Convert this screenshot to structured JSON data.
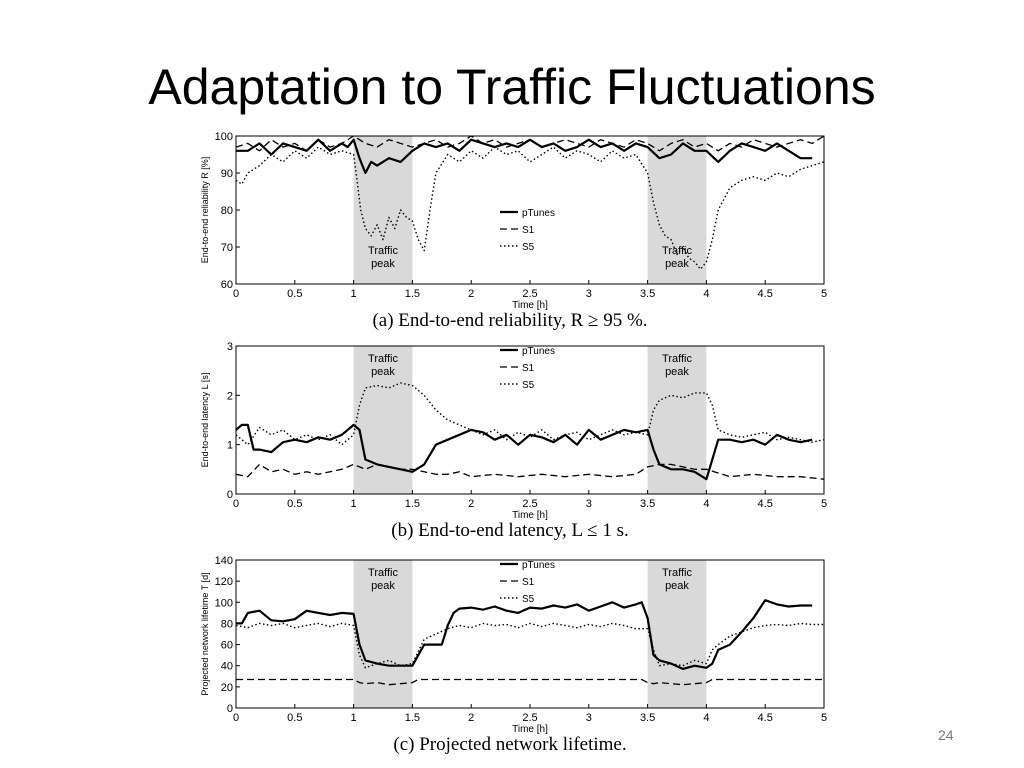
{
  "slide": {
    "title": "Adaptation to Traffic Fluctuations",
    "page_number": "24"
  },
  "chart_data": [
    {
      "type": "line",
      "caption": "(a) End-to-end reliability, R ≥ 95 %.",
      "xlabel": "Time [h]",
      "ylabel": "End-to-end reliability R [%]",
      "xlim": [
        0,
        5
      ],
      "ylim": [
        60,
        100
      ],
      "xticks": [
        "0",
        "0.5",
        "1",
        "1.5",
        "2",
        "2.5",
        "3",
        "3.5",
        "4",
        "4.5",
        "5"
      ],
      "yticks": [
        "60",
        "70",
        "80",
        "90",
        "100"
      ],
      "shaded_regions": [
        {
          "x": [
            1,
            1.5
          ],
          "label_lines": [
            "Traffic",
            "peak"
          ],
          "label_pos": "bottom"
        },
        {
          "x": [
            3.5,
            4
          ],
          "label_lines": [
            "Traffic",
            "peak"
          ],
          "label_pos": "bottom"
        }
      ],
      "legend_pos": "center",
      "series": [
        {
          "name": "pTunes",
          "style": "solid",
          "x": [
            0,
            0.1,
            0.2,
            0.3,
            0.4,
            0.5,
            0.6,
            0.7,
            0.8,
            0.9,
            0.95,
            1.0,
            1.05,
            1.1,
            1.15,
            1.2,
            1.3,
            1.4,
            1.5,
            1.6,
            1.7,
            1.8,
            1.9,
            2.0,
            2.1,
            2.2,
            2.3,
            2.4,
            2.5,
            2.6,
            2.7,
            2.8,
            2.9,
            3.0,
            3.1,
            3.2,
            3.3,
            3.4,
            3.5,
            3.6,
            3.7,
            3.8,
            3.9,
            4.0,
            4.1,
            4.2,
            4.3,
            4.4,
            4.5,
            4.6,
            4.7,
            4.8,
            4.9
          ],
          "values": [
            96,
            96,
            98,
            95,
            98,
            97,
            96,
            99,
            96,
            98,
            97,
            99,
            94,
            90,
            93,
            92,
            94,
            93,
            96,
            98,
            97,
            98,
            96,
            99,
            98,
            97,
            98,
            97,
            99,
            97,
            98,
            96,
            97,
            99,
            97,
            98,
            96,
            98,
            97,
            94,
            95,
            98,
            96,
            96,
            93,
            96,
            98,
            97,
            96,
            98,
            96,
            94,
            94
          ]
        },
        {
          "name": "S1",
          "style": "dashed",
          "x": [
            0,
            0.1,
            0.2,
            0.3,
            0.4,
            0.5,
            0.6,
            0.7,
            0.8,
            0.9,
            1.0,
            1.1,
            1.2,
            1.3,
            1.4,
            1.5,
            1.6,
            1.7,
            1.8,
            1.9,
            2.0,
            2.1,
            2.2,
            2.3,
            2.4,
            2.5,
            2.6,
            2.7,
            2.8,
            2.9,
            3.0,
            3.1,
            3.2,
            3.3,
            3.4,
            3.5,
            3.6,
            3.7,
            3.8,
            3.9,
            4.0,
            4.1,
            4.2,
            4.3,
            4.4,
            4.5,
            4.6,
            4.7,
            4.8,
            4.9,
            5.0
          ],
          "values": [
            97,
            98,
            96,
            99,
            97,
            98,
            96,
            99,
            97,
            98,
            100,
            98,
            97,
            99,
            98,
            97,
            98,
            99,
            97,
            98,
            100,
            98,
            99,
            97,
            98,
            99,
            97,
            98,
            99,
            98,
            97,
            99,
            98,
            97,
            99,
            98,
            96,
            98,
            99,
            97,
            98,
            96,
            98,
            97,
            99,
            98,
            97,
            98,
            99,
            98,
            100
          ]
        },
        {
          "name": "S5",
          "style": "dotted",
          "x": [
            0,
            0.05,
            0.1,
            0.2,
            0.3,
            0.4,
            0.5,
            0.6,
            0.7,
            0.8,
            0.9,
            1.0,
            1.03,
            1.06,
            1.1,
            1.15,
            1.2,
            1.25,
            1.3,
            1.35,
            1.4,
            1.45,
            1.5,
            1.55,
            1.6,
            1.65,
            1.7,
            1.8,
            1.9,
            2.0,
            2.1,
            2.2,
            2.3,
            2.4,
            2.5,
            2.6,
            2.7,
            2.8,
            2.9,
            3.0,
            3.1,
            3.2,
            3.3,
            3.4,
            3.5,
            3.55,
            3.6,
            3.65,
            3.7,
            3.75,
            3.8,
            3.85,
            3.9,
            3.95,
            4.0,
            4.05,
            4.1,
            4.2,
            4.3,
            4.4,
            4.5,
            4.6,
            4.7,
            4.8,
            4.9,
            5.0
          ],
          "values": [
            88,
            87,
            90,
            92,
            95,
            93,
            96,
            94,
            97,
            95,
            96,
            95,
            88,
            80,
            75,
            73,
            76,
            72,
            78,
            75,
            80,
            78,
            77,
            72,
            69,
            80,
            90,
            95,
            93,
            96,
            94,
            97,
            95,
            96,
            93,
            95,
            97,
            94,
            96,
            95,
            93,
            96,
            94,
            95,
            90,
            82,
            76,
            73,
            72,
            68,
            70,
            67,
            66,
            64,
            66,
            72,
            80,
            86,
            88,
            89,
            88,
            90,
            89,
            91,
            92,
            93
          ]
        }
      ]
    },
    {
      "type": "line",
      "caption": "(b) End-to-end latency, L ≤ 1 s.",
      "xlabel": "Time [h]",
      "ylabel": "End-to-end latency L [s]",
      "xlim": [
        0,
        5
      ],
      "ylim": [
        0,
        3
      ],
      "xticks": [
        "0",
        "0.5",
        "1",
        "1.5",
        "2",
        "2.5",
        "3",
        "3.5",
        "4",
        "4.5",
        "5"
      ],
      "yticks": [
        "0",
        "1",
        "2",
        "3"
      ],
      "shaded_regions": [
        {
          "x": [
            1,
            1.5
          ],
          "label_lines": [
            "Traffic",
            "peak"
          ],
          "label_pos": "top"
        },
        {
          "x": [
            3.5,
            4
          ],
          "label_lines": [
            "Traffic",
            "peak"
          ],
          "label_pos": "top"
        }
      ],
      "legend_pos": "top-center",
      "series": [
        {
          "name": "pTunes",
          "style": "solid",
          "x": [
            0,
            0.05,
            0.1,
            0.15,
            0.2,
            0.3,
            0.4,
            0.5,
            0.6,
            0.7,
            0.8,
            0.9,
            1.0,
            1.05,
            1.1,
            1.15,
            1.2,
            1.3,
            1.4,
            1.5,
            1.6,
            1.7,
            1.8,
            1.9,
            2.0,
            2.1,
            2.2,
            2.3,
            2.4,
            2.5,
            2.6,
            2.7,
            2.8,
            2.9,
            3.0,
            3.1,
            3.2,
            3.3,
            3.4,
            3.5,
            3.55,
            3.6,
            3.7,
            3.8,
            3.9,
            4.0,
            4.05,
            4.1,
            4.2,
            4.3,
            4.4,
            4.5,
            4.6,
            4.7,
            4.8,
            4.9
          ],
          "values": [
            1.3,
            1.4,
            1.4,
            0.9,
            0.9,
            0.85,
            1.05,
            1.1,
            1.05,
            1.15,
            1.1,
            1.2,
            1.4,
            1.3,
            0.7,
            0.65,
            0.6,
            0.55,
            0.5,
            0.45,
            0.6,
            1.0,
            1.1,
            1.2,
            1.3,
            1.25,
            1.1,
            1.2,
            1.0,
            1.2,
            1.15,
            1.05,
            1.2,
            1.0,
            1.3,
            1.1,
            1.2,
            1.3,
            1.25,
            1.3,
            0.9,
            0.6,
            0.5,
            0.5,
            0.45,
            0.3,
            0.7,
            1.1,
            1.1,
            1.05,
            1.1,
            1.0,
            1.2,
            1.1,
            1.05,
            1.1
          ]
        },
        {
          "name": "S1",
          "style": "dashed",
          "x": [
            0,
            0.1,
            0.2,
            0.3,
            0.4,
            0.5,
            0.6,
            0.7,
            0.8,
            0.9,
            1.0,
            1.1,
            1.2,
            1.3,
            1.4,
            1.5,
            1.6,
            1.7,
            1.8,
            1.9,
            2.0,
            2.2,
            2.4,
            2.6,
            2.8,
            3.0,
            3.2,
            3.4,
            3.5,
            3.6,
            3.7,
            3.8,
            3.9,
            4.0,
            4.2,
            4.4,
            4.6,
            4.8,
            5.0
          ],
          "values": [
            0.4,
            0.35,
            0.6,
            0.45,
            0.5,
            0.4,
            0.45,
            0.4,
            0.45,
            0.5,
            0.6,
            0.5,
            0.6,
            0.55,
            0.5,
            0.5,
            0.45,
            0.4,
            0.4,
            0.45,
            0.35,
            0.4,
            0.35,
            0.4,
            0.35,
            0.4,
            0.35,
            0.4,
            0.55,
            0.6,
            0.6,
            0.55,
            0.5,
            0.5,
            0.35,
            0.4,
            0.35,
            0.35,
            0.3
          ]
        },
        {
          "name": "S5",
          "style": "dotted",
          "x": [
            0,
            0.1,
            0.2,
            0.3,
            0.4,
            0.5,
            0.6,
            0.7,
            0.8,
            0.9,
            1.0,
            1.05,
            1.1,
            1.2,
            1.3,
            1.4,
            1.5,
            1.6,
            1.7,
            1.8,
            1.9,
            2.0,
            2.1,
            2.2,
            2.3,
            2.4,
            2.5,
            2.6,
            2.7,
            2.8,
            2.9,
            3.0,
            3.1,
            3.2,
            3.3,
            3.4,
            3.5,
            3.55,
            3.6,
            3.7,
            3.8,
            3.9,
            4.0,
            4.05,
            4.1,
            4.2,
            4.3,
            4.4,
            4.5,
            4.6,
            4.7,
            4.8,
            4.9,
            5.0
          ],
          "values": [
            1.2,
            1.0,
            1.35,
            1.2,
            1.3,
            1.1,
            1.2,
            1.1,
            1.2,
            1.0,
            1.2,
            1.8,
            2.15,
            2.2,
            2.15,
            2.25,
            2.2,
            2.0,
            1.7,
            1.5,
            1.4,
            1.3,
            1.2,
            1.3,
            1.1,
            1.25,
            1.15,
            1.3,
            1.1,
            1.2,
            1.25,
            1.1,
            1.2,
            1.3,
            1.2,
            1.25,
            1.2,
            1.7,
            1.9,
            2.0,
            1.95,
            2.05,
            2.05,
            1.8,
            1.3,
            1.2,
            1.15,
            1.2,
            1.25,
            1.1,
            1.15,
            1.1,
            1.05,
            1.1
          ]
        }
      ]
    },
    {
      "type": "line",
      "caption": "(c) Projected network lifetime.",
      "xlabel": "Time [h]",
      "ylabel": "Projected network lifetime T [d]",
      "xlim": [
        0,
        5
      ],
      "ylim": [
        0,
        140
      ],
      "xticks": [
        "0",
        "0.5",
        "1",
        "1.5",
        "2",
        "2.5",
        "3",
        "3.5",
        "4",
        "4.5",
        "5"
      ],
      "yticks": [
        "0",
        "20",
        "40",
        "60",
        "80",
        "100",
        "120",
        "140"
      ],
      "shaded_regions": [
        {
          "x": [
            1,
            1.5
          ],
          "label_lines": [
            "Traffic",
            "peak"
          ],
          "label_pos": "top"
        },
        {
          "x": [
            3.5,
            4
          ],
          "label_lines": [
            "Traffic",
            "peak"
          ],
          "label_pos": "top"
        }
      ],
      "legend_pos": "top-center",
      "series": [
        {
          "name": "pTunes",
          "style": "solid",
          "x": [
            0,
            0.05,
            0.1,
            0.2,
            0.3,
            0.4,
            0.5,
            0.6,
            0.7,
            0.8,
            0.9,
            1.0,
            1.05,
            1.1,
            1.2,
            1.3,
            1.4,
            1.5,
            1.55,
            1.6,
            1.7,
            1.75,
            1.8,
            1.85,
            1.9,
            2.0,
            2.1,
            2.2,
            2.3,
            2.4,
            2.5,
            2.6,
            2.7,
            2.8,
            2.9,
            3.0,
            3.1,
            3.2,
            3.3,
            3.4,
            3.45,
            3.5,
            3.55,
            3.6,
            3.7,
            3.8,
            3.9,
            4.0,
            4.05,
            4.1,
            4.2,
            4.3,
            4.4,
            4.5,
            4.6,
            4.7,
            4.8,
            4.9
          ],
          "values": [
            80,
            80,
            90,
            92,
            83,
            82,
            84,
            92,
            90,
            88,
            90,
            89,
            60,
            45,
            42,
            40,
            40,
            40,
            50,
            60,
            60,
            60,
            78,
            90,
            94,
            95,
            93,
            96,
            92,
            90,
            95,
            94,
            97,
            95,
            98,
            92,
            96,
            100,
            95,
            98,
            100,
            85,
            50,
            45,
            42,
            37,
            40,
            38,
            42,
            55,
            60,
            72,
            85,
            102,
            98,
            96,
            97,
            97
          ]
        },
        {
          "name": "S1",
          "style": "dashed",
          "x": [
            0,
            0.5,
            1.0,
            1.05,
            1.1,
            1.2,
            1.3,
            1.4,
            1.5,
            1.55,
            2.0,
            2.5,
            3.0,
            3.45,
            3.5,
            3.55,
            3.6,
            3.7,
            3.8,
            3.9,
            4.0,
            4.05,
            4.5,
            5.0
          ],
          "values": [
            27,
            27,
            27,
            24,
            23,
            24,
            22,
            23,
            24,
            27,
            27,
            27,
            27,
            27,
            24,
            23,
            24,
            23,
            22,
            23,
            24,
            27,
            27,
            27
          ]
        },
        {
          "name": "S5",
          "style": "dotted",
          "x": [
            0,
            0.1,
            0.2,
            0.3,
            0.4,
            0.5,
            0.6,
            0.7,
            0.8,
            0.9,
            1.0,
            1.05,
            1.1,
            1.2,
            1.3,
            1.4,
            1.5,
            1.6,
            1.7,
            1.8,
            1.9,
            2.0,
            2.1,
            2.2,
            2.3,
            2.4,
            2.5,
            2.6,
            2.7,
            2.8,
            2.9,
            3.0,
            3.1,
            3.2,
            3.3,
            3.4,
            3.5,
            3.55,
            3.6,
            3.7,
            3.8,
            3.9,
            4.0,
            4.05,
            4.1,
            4.2,
            4.3,
            4.4,
            4.5,
            4.6,
            4.7,
            4.8,
            4.9,
            5.0
          ],
          "values": [
            78,
            76,
            80,
            78,
            80,
            76,
            78,
            80,
            77,
            80,
            78,
            50,
            38,
            42,
            45,
            40,
            42,
            65,
            70,
            75,
            78,
            76,
            80,
            78,
            79,
            76,
            80,
            77,
            80,
            78,
            76,
            79,
            77,
            80,
            78,
            75,
            75,
            55,
            40,
            42,
            40,
            45,
            42,
            55,
            60,
            68,
            72,
            76,
            78,
            79,
            78,
            80,
            79,
            79
          ]
        }
      ]
    }
  ]
}
